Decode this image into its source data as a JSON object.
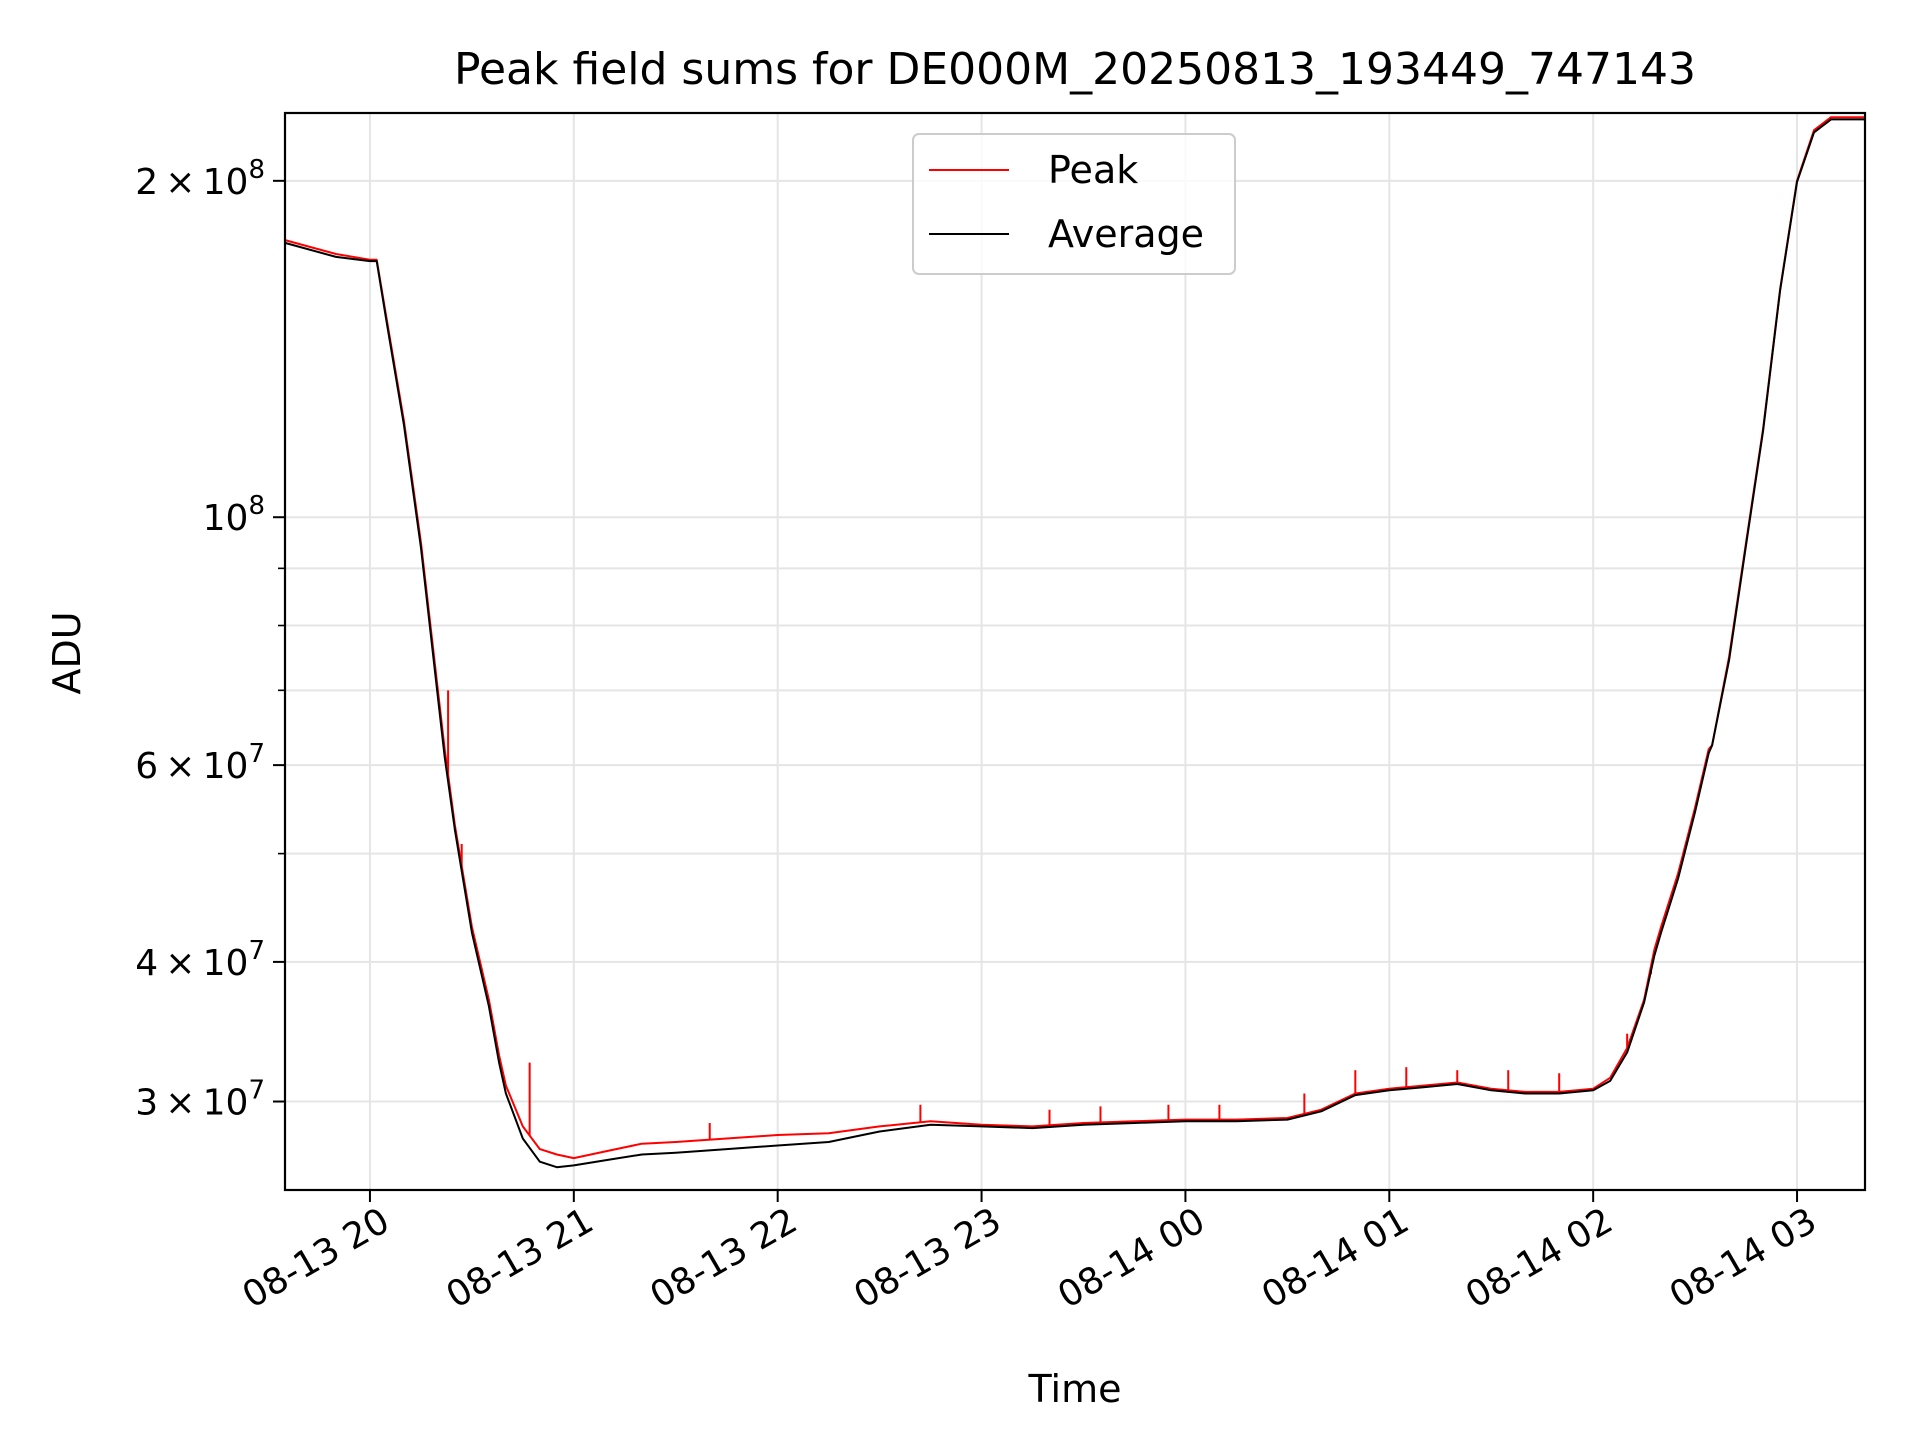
{
  "chart_data": {
    "type": "line",
    "title": "Peak field sums for DE000M_20250813_193449_747143",
    "xlabel": "Time",
    "ylabel": "ADU",
    "y_scale": "log",
    "ylim": [
      25000000,
      230000000
    ],
    "xlim": [
      "2025-08-13T19:35:00",
      "2025-08-14T03:20:00"
    ],
    "grid": true,
    "legend_position": "top-center",
    "x_ticks": [
      {
        "value": "2025-08-13T20:00:00",
        "label": "08-13 20"
      },
      {
        "value": "2025-08-13T21:00:00",
        "label": "08-13 21"
      },
      {
        "value": "2025-08-13T22:00:00",
        "label": "08-13 22"
      },
      {
        "value": "2025-08-13T23:00:00",
        "label": "08-13 23"
      },
      {
        "value": "2025-08-14T00:00:00",
        "label": "08-14 00"
      },
      {
        "value": "2025-08-14T01:00:00",
        "label": "08-14 01"
      },
      {
        "value": "2025-08-14T02:00:00",
        "label": "08-14 02"
      },
      {
        "value": "2025-08-14T03:00:00",
        "label": "08-14 03"
      }
    ],
    "y_ticks_major": [
      {
        "value": 30000000,
        "mant": "3",
        "exp": "7"
      },
      {
        "value": 40000000,
        "mant": "4",
        "exp": "7"
      },
      {
        "value": 60000000,
        "mant": "6",
        "exp": "7"
      },
      {
        "value": 100000000,
        "mant": "",
        "exp": "8"
      },
      {
        "value": 200000000,
        "mant": "2",
        "exp": "8"
      }
    ],
    "y_ticks_minor": [
      50000000,
      70000000,
      80000000,
      90000000
    ],
    "series": [
      {
        "name": "Peak",
        "color": "#ff0000",
        "x": [
          "2025-08-13T19:35:00",
          "2025-08-13T19:50:00",
          "2025-08-13T20:00:00",
          "2025-08-13T20:02:00",
          "2025-08-13T20:05:00",
          "2025-08-13T20:10:00",
          "2025-08-13T20:15:00",
          "2025-08-13T20:20:00",
          "2025-08-13T20:22:00",
          "2025-08-13T20:25:00",
          "2025-08-13T20:30:00",
          "2025-08-13T20:35:00",
          "2025-08-13T20:38:00",
          "2025-08-13T20:40:00",
          "2025-08-13T20:45:00",
          "2025-08-13T20:50:00",
          "2025-08-13T20:55:00",
          "2025-08-13T21:00:00",
          "2025-08-13T21:10:00",
          "2025-08-13T21:20:00",
          "2025-08-13T21:30:00",
          "2025-08-13T21:45:00",
          "2025-08-13T22:00:00",
          "2025-08-13T22:15:00",
          "2025-08-13T22:30:00",
          "2025-08-13T22:45:00",
          "2025-08-13T23:00:00",
          "2025-08-13T23:15:00",
          "2025-08-13T23:30:00",
          "2025-08-13T23:45:00",
          "2025-08-14T00:00:00",
          "2025-08-14T00:15:00",
          "2025-08-14T00:30:00",
          "2025-08-14T00:40:00",
          "2025-08-14T00:50:00",
          "2025-08-14T01:00:00",
          "2025-08-14T01:10:00",
          "2025-08-14T01:20:00",
          "2025-08-14T01:30:00",
          "2025-08-14T01:40:00",
          "2025-08-14T01:50:00",
          "2025-08-14T02:00:00",
          "2025-08-14T02:05:00",
          "2025-08-14T02:10:00",
          "2025-08-14T02:15:00",
          "2025-08-14T02:18:00",
          "2025-08-14T02:20:00",
          "2025-08-14T02:25:00",
          "2025-08-14T02:30:00",
          "2025-08-14T02:34:00",
          "2025-08-14T02:35:00",
          "2025-08-14T02:40:00",
          "2025-08-14T02:45:00",
          "2025-08-14T02:50:00",
          "2025-08-14T02:55:00",
          "2025-08-14T03:00:00",
          "2025-08-14T03:05:00",
          "2025-08-14T03:10:00",
          "2025-08-14T03:20:00"
        ],
        "y": [
          177000000,
          172000000,
          170000000,
          170000000,
          150000000,
          122000000,
          95000000,
          70000000,
          62000000,
          53000000,
          43000000,
          37000000,
          33000000,
          31000000,
          28500000,
          27200000,
          26900000,
          26700000,
          27100000,
          27500000,
          27600000,
          27800000,
          28000000,
          28100000,
          28500000,
          28800000,
          28600000,
          28500000,
          28700000,
          28800000,
          28900000,
          28900000,
          29000000,
          29500000,
          30500000,
          30800000,
          31000000,
          31200000,
          30800000,
          30600000,
          30600000,
          30800000,
          31500000,
          33500000,
          37000000,
          41000000,
          43000000,
          48000000,
          55000000,
          62000000,
          62500000,
          75000000,
          95000000,
          120000000,
          160000000,
          200000000,
          222000000,
          228000000,
          228000000
        ],
        "spikes": [
          {
            "x": "2025-08-13T20:23:00",
            "y": 70000000
          },
          {
            "x": "2025-08-13T20:27:00",
            "y": 51000000
          },
          {
            "x": "2025-08-13T20:47:00",
            "y": 32500000
          },
          {
            "x": "2025-08-13T21:40:00",
            "y": 28700000
          },
          {
            "x": "2025-08-13T22:42:00",
            "y": 29800000
          },
          {
            "x": "2025-08-13T23:20:00",
            "y": 29500000
          },
          {
            "x": "2025-08-13T23:35:00",
            "y": 29700000
          },
          {
            "x": "2025-08-13T23:55:00",
            "y": 29800000
          },
          {
            "x": "2025-08-14T00:10:00",
            "y": 29800000
          },
          {
            "x": "2025-08-14T00:35:00",
            "y": 30500000
          },
          {
            "x": "2025-08-14T00:50:00",
            "y": 32000000
          },
          {
            "x": "2025-08-14T01:05:00",
            "y": 32200000
          },
          {
            "x": "2025-08-14T01:20:00",
            "y": 32000000
          },
          {
            "x": "2025-08-14T01:35:00",
            "y": 32000000
          },
          {
            "x": "2025-08-14T01:50:00",
            "y": 31800000
          },
          {
            "x": "2025-08-14T02:10:00",
            "y": 34500000
          },
          {
            "x": "2025-08-14T02:17:00",
            "y": 39000000
          }
        ]
      },
      {
        "name": "Average",
        "color": "#000000",
        "x": [
          "2025-08-13T19:35:00",
          "2025-08-13T19:50:00",
          "2025-08-13T20:00:00",
          "2025-08-13T20:02:00",
          "2025-08-13T20:05:00",
          "2025-08-13T20:10:00",
          "2025-08-13T20:15:00",
          "2025-08-13T20:20:00",
          "2025-08-13T20:22:00",
          "2025-08-13T20:25:00",
          "2025-08-13T20:30:00",
          "2025-08-13T20:35:00",
          "2025-08-13T20:38:00",
          "2025-08-13T20:40:00",
          "2025-08-13T20:45:00",
          "2025-08-13T20:50:00",
          "2025-08-13T20:55:00",
          "2025-08-13T21:00:00",
          "2025-08-13T21:10:00",
          "2025-08-13T21:20:00",
          "2025-08-13T21:30:00",
          "2025-08-13T21:45:00",
          "2025-08-13T22:00:00",
          "2025-08-13T22:15:00",
          "2025-08-13T22:30:00",
          "2025-08-13T22:45:00",
          "2025-08-13T23:00:00",
          "2025-08-13T23:15:00",
          "2025-08-13T23:30:00",
          "2025-08-13T23:45:00",
          "2025-08-14T00:00:00",
          "2025-08-14T00:15:00",
          "2025-08-14T00:30:00",
          "2025-08-14T00:40:00",
          "2025-08-14T00:50:00",
          "2025-08-14T01:00:00",
          "2025-08-14T01:10:00",
          "2025-08-14T01:20:00",
          "2025-08-14T01:30:00",
          "2025-08-14T01:40:00",
          "2025-08-14T01:50:00",
          "2025-08-14T02:00:00",
          "2025-08-14T02:05:00",
          "2025-08-14T02:10:00",
          "2025-08-14T02:15:00",
          "2025-08-14T02:18:00",
          "2025-08-14T02:20:00",
          "2025-08-14T02:25:00",
          "2025-08-14T02:30:00",
          "2025-08-14T02:34:00",
          "2025-08-14T02:35:00",
          "2025-08-14T02:40:00",
          "2025-08-14T02:45:00",
          "2025-08-14T02:50:00",
          "2025-08-14T02:55:00",
          "2025-08-14T03:00:00",
          "2025-08-14T03:05:00",
          "2025-08-14T03:10:00",
          "2025-08-14T03:20:00"
        ],
        "y": [
          176000000,
          171000000,
          169500000,
          169500000,
          149000000,
          121000000,
          94000000,
          69000000,
          61000000,
          52500000,
          42500000,
          36500000,
          32500000,
          30500000,
          27800000,
          26500000,
          26200000,
          26300000,
          26600000,
          26900000,
          27000000,
          27200000,
          27400000,
          27600000,
          28200000,
          28600000,
          28500000,
          28400000,
          28600000,
          28700000,
          28800000,
          28800000,
          28900000,
          29400000,
          30400000,
          30700000,
          30900000,
          31100000,
          30700000,
          30500000,
          30500000,
          30700000,
          31300000,
          33200000,
          36800000,
          40500000,
          42500000,
          47500000,
          54500000,
          61500000,
          62500000,
          74500000,
          94500000,
          119500000,
          159500000,
          199500000,
          221000000,
          227000000,
          227000000
        ]
      }
    ]
  }
}
